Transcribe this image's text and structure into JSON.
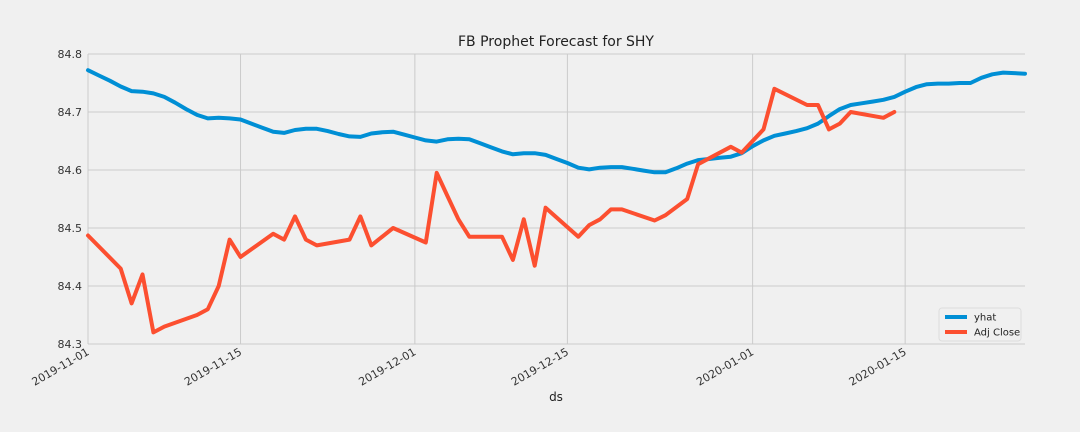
{
  "chart_data": {
    "type": "line",
    "title": "FB Prophet Forecast for SHY",
    "xlabel": "ds",
    "ylabel": "",
    "ylim": [
      84.3,
      84.8
    ],
    "xlim": [
      "2019-11-01",
      "2020-01-26"
    ],
    "grid": true,
    "legend": "bottom-right",
    "yticks": [
      "84.3",
      "84.4",
      "84.5",
      "84.6",
      "84.7",
      "84.8"
    ],
    "xticks": [
      "2019-11-01",
      "2019-11-15",
      "2019-12-01",
      "2019-12-15",
      "2020-01-01",
      "2020-01-15"
    ],
    "series": [
      {
        "name": "yhat",
        "color": "#008fd5",
        "points": [
          [
            "2019-11-01",
            84.772
          ],
          [
            "2019-11-02",
            84.763
          ],
          [
            "2019-11-03",
            84.754
          ],
          [
            "2019-11-04",
            84.744
          ],
          [
            "2019-11-05",
            84.736
          ],
          [
            "2019-11-06",
            84.735
          ],
          [
            "2019-11-07",
            84.732
          ],
          [
            "2019-11-08",
            84.726
          ],
          [
            "2019-11-09",
            84.716
          ],
          [
            "2019-11-10",
            84.705
          ],
          [
            "2019-11-11",
            84.695
          ],
          [
            "2019-11-12",
            84.689
          ],
          [
            "2019-11-13",
            84.69
          ],
          [
            "2019-11-14",
            84.689
          ],
          [
            "2019-11-15",
            84.687
          ],
          [
            "2019-11-16",
            84.68
          ],
          [
            "2019-11-17",
            84.673
          ],
          [
            "2019-11-18",
            84.666
          ],
          [
            "2019-11-19",
            84.664
          ],
          [
            "2019-11-20",
            84.669
          ],
          [
            "2019-11-21",
            84.671
          ],
          [
            "2019-11-22",
            84.671
          ],
          [
            "2019-11-23",
            84.667
          ],
          [
            "2019-11-24",
            84.662
          ],
          [
            "2019-11-25",
            84.658
          ],
          [
            "2019-11-26",
            84.657
          ],
          [
            "2019-11-27",
            84.663
          ],
          [
            "2019-11-28",
            84.665
          ],
          [
            "2019-11-29",
            84.666
          ],
          [
            "2019-11-30",
            84.661
          ],
          [
            "2019-12-01",
            84.656
          ],
          [
            "2019-12-02",
            84.651
          ],
          [
            "2019-12-03",
            84.649
          ],
          [
            "2019-12-04",
            84.653
          ],
          [
            "2019-12-05",
            84.654
          ],
          [
            "2019-12-06",
            84.653
          ],
          [
            "2019-12-07",
            84.646
          ],
          [
            "2019-12-08",
            84.639
          ],
          [
            "2019-12-09",
            84.632
          ],
          [
            "2019-12-10",
            84.627
          ],
          [
            "2019-12-11",
            84.629
          ],
          [
            "2019-12-12",
            84.629
          ],
          [
            "2019-12-13",
            84.626
          ],
          [
            "2019-12-14",
            84.619
          ],
          [
            "2019-12-15",
            84.612
          ],
          [
            "2019-12-16",
            84.604
          ],
          [
            "2019-12-17",
            84.601
          ],
          [
            "2019-12-18",
            84.604
          ],
          [
            "2019-12-19",
            84.605
          ],
          [
            "2019-12-20",
            84.605
          ],
          [
            "2019-12-21",
            84.602
          ],
          [
            "2019-12-22",
            84.599
          ],
          [
            "2019-12-23",
            84.596
          ],
          [
            "2019-12-24",
            84.596
          ],
          [
            "2019-12-25",
            84.603
          ],
          [
            "2019-12-26",
            84.611
          ],
          [
            "2019-12-27",
            84.617
          ],
          [
            "2019-12-28",
            84.619
          ],
          [
            "2019-12-29",
            84.621
          ],
          [
            "2019-12-30",
            84.623
          ],
          [
            "2019-12-31",
            84.629
          ],
          [
            "2020-01-01",
            84.641
          ],
          [
            "2020-01-02",
            84.651
          ],
          [
            "2020-01-03",
            84.659
          ],
          [
            "2020-01-04",
            84.663
          ],
          [
            "2020-01-05",
            84.667
          ],
          [
            "2020-01-06",
            84.672
          ],
          [
            "2020-01-07",
            84.68
          ],
          [
            "2020-01-08",
            84.693
          ],
          [
            "2020-01-09",
            84.705
          ],
          [
            "2020-01-10",
            84.712
          ],
          [
            "2020-01-11",
            84.715
          ],
          [
            "2020-01-12",
            84.718
          ],
          [
            "2020-01-13",
            84.721
          ],
          [
            "2020-01-14",
            84.726
          ],
          [
            "2020-01-15",
            84.735
          ],
          [
            "2020-01-16",
            84.743
          ],
          [
            "2020-01-17",
            84.748
          ],
          [
            "2020-01-18",
            84.749
          ],
          [
            "2020-01-19",
            84.749
          ],
          [
            "2020-01-20",
            84.75
          ],
          [
            "2020-01-21",
            84.75
          ],
          [
            "2020-01-22",
            84.759
          ],
          [
            "2020-01-23",
            84.765
          ],
          [
            "2020-01-24",
            84.768
          ],
          [
            "2020-01-25",
            84.767
          ],
          [
            "2020-01-26",
            84.766
          ]
        ]
      },
      {
        "name": "Adj Close",
        "color": "#fc4f30",
        "points": [
          [
            "2019-11-01",
            84.487
          ],
          [
            "2019-11-04",
            84.43
          ],
          [
            "2019-11-05",
            84.37
          ],
          [
            "2019-11-06",
            84.42
          ],
          [
            "2019-11-07",
            84.32
          ],
          [
            "2019-11-08",
            84.33
          ],
          [
            "2019-11-11",
            84.35
          ],
          [
            "2019-11-12",
            84.36
          ],
          [
            "2019-11-13",
            84.4
          ],
          [
            "2019-11-14",
            84.48
          ],
          [
            "2019-11-15",
            84.45
          ],
          [
            "2019-11-18",
            84.49
          ],
          [
            "2019-11-19",
            84.48
          ],
          [
            "2019-11-20",
            84.52
          ],
          [
            "2019-11-21",
            84.48
          ],
          [
            "2019-11-22",
            84.47
          ],
          [
            "2019-11-25",
            84.48
          ],
          [
            "2019-11-26",
            84.52
          ],
          [
            "2019-11-27",
            84.47
          ],
          [
            "2019-11-29",
            84.5
          ],
          [
            "2019-12-02",
            84.475
          ],
          [
            "2019-12-03",
            84.595
          ],
          [
            "2019-12-04",
            84.555
          ],
          [
            "2019-12-05",
            84.515
          ],
          [
            "2019-12-06",
            84.485
          ],
          [
            "2019-12-09",
            84.485
          ],
          [
            "2019-12-10",
            84.445
          ],
          [
            "2019-12-11",
            84.515
          ],
          [
            "2019-12-12",
            84.435
          ],
          [
            "2019-12-13",
            84.535
          ],
          [
            "2019-12-16",
            84.485
          ],
          [
            "2019-12-17",
            84.505
          ],
          [
            "2019-12-18",
            84.515
          ],
          [
            "2019-12-19",
            84.532
          ],
          [
            "2019-12-20",
            84.532
          ],
          [
            "2019-12-23",
            84.513
          ],
          [
            "2019-12-24",
            84.522
          ],
          [
            "2019-12-26",
            84.55
          ],
          [
            "2019-12-27",
            84.61
          ],
          [
            "2019-12-30",
            84.64
          ],
          [
            "2019-12-31",
            84.63
          ],
          [
            "2020-01-02",
            84.67
          ],
          [
            "2020-01-03",
            84.74
          ],
          [
            "2020-01-06",
            84.712
          ],
          [
            "2020-01-07",
            84.712
          ],
          [
            "2020-01-08",
            84.67
          ],
          [
            "2020-01-09",
            84.68
          ],
          [
            "2020-01-10",
            84.7
          ],
          [
            "2020-01-13",
            84.69
          ],
          [
            "2020-01-14",
            84.7
          ]
        ]
      }
    ]
  }
}
